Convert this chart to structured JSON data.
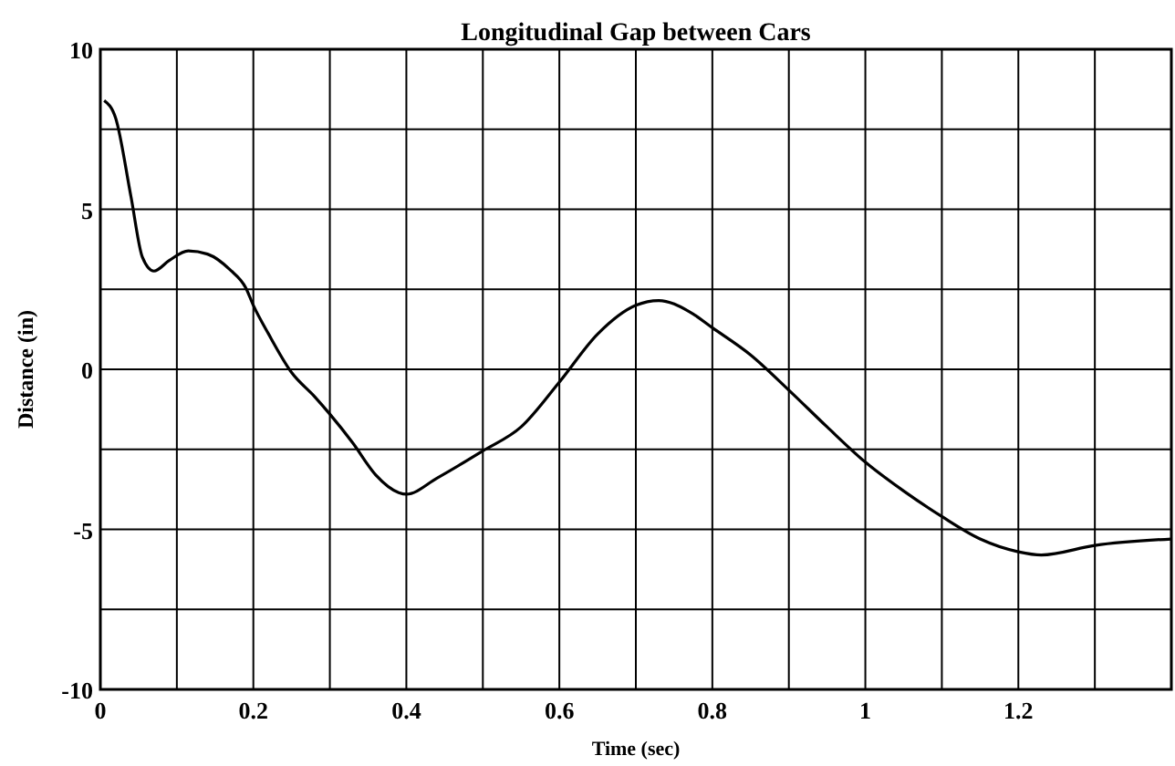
{
  "chart_data": {
    "type": "line",
    "title": "Longitudinal Gap between Cars",
    "xlabel": "Time (sec)",
    "ylabel": "Distance (in)",
    "xlim": [
      0,
      1.4
    ],
    "ylim": [
      -10,
      10
    ],
    "xticks": [
      0,
      {
        "value": 0.1,
        "label": null
      },
      0.2,
      {
        "value": 0.3,
        "label": null
      },
      0.4,
      {
        "value": 0.5,
        "label": null
      },
      0.6,
      {
        "value": 0.7,
        "label": null
      },
      0.8,
      {
        "value": 0.9,
        "label": null
      },
      1,
      {
        "value": 1.1,
        "label": null
      },
      1.2,
      {
        "value": 1.3,
        "label": null
      },
      {
        "value": 1.4,
        "label": null
      }
    ],
    "yticks": [
      -10,
      {
        "value": -7.5,
        "label": null
      },
      -5,
      {
        "value": -2.5,
        "label": null
      },
      0,
      {
        "value": 2.5,
        "label": null
      },
      5,
      {
        "value": 7.5,
        "label": null
      },
      10
    ],
    "grid": true,
    "marker": "none",
    "line_style": "solid",
    "series": [
      {
        "color": "#000000",
        "x": [
          0.005,
          0.02,
          0.04,
          0.055,
          0.07,
          0.09,
          0.115,
          0.14,
          0.17,
          0.19,
          0.2,
          0.22,
          0.25,
          0.28,
          0.3,
          0.33,
          0.36,
          0.39,
          0.4,
          0.44,
          0.5,
          0.55,
          0.6,
          0.65,
          0.7,
          0.73,
          0.77,
          0.8,
          0.85,
          0.9,
          0.95,
          1.0,
          1.05,
          1.1,
          1.15,
          1.2,
          1.23,
          1.3,
          1.4
        ],
        "values": [
          8.4,
          7.85,
          5.4,
          3.5,
          3.07,
          3.4,
          3.7,
          3.6,
          3.1,
          2.55,
          2.0,
          1.1,
          -0.1,
          -0.85,
          -1.4,
          -2.3,
          -3.3,
          -3.85,
          -3.9,
          -3.4,
          -2.55,
          -1.8,
          -0.4,
          1.1,
          2.0,
          2.15,
          1.8,
          1.3,
          0.45,
          -0.65,
          -1.8,
          -2.9,
          -3.8,
          -4.6,
          -5.3,
          -5.7,
          -5.8,
          -5.5,
          -5.3
        ]
      }
    ]
  }
}
